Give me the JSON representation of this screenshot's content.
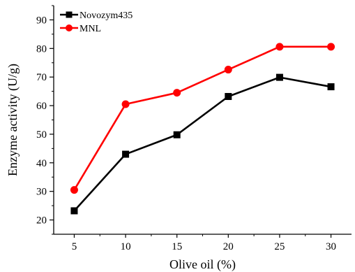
{
  "chart_data": {
    "type": "line",
    "title": "",
    "xlabel": "Olive oil (%)",
    "ylabel": "Enzyme activity (U/g)",
    "x": [
      5,
      10,
      15,
      20,
      25,
      30
    ],
    "x_ticks": [
      "5",
      "10",
      "15",
      "20",
      "25",
      "30"
    ],
    "y_ticks": [
      "20",
      "30",
      "40",
      "50",
      "60",
      "70",
      "80",
      "90"
    ],
    "xlim": [
      3,
      32
    ],
    "ylim": [
      15,
      95
    ],
    "grid": false,
    "legend_position": "top-left",
    "series": [
      {
        "name": "Novozym435",
        "color": "#000000",
        "marker": "square",
        "values": [
          23.2,
          43.0,
          49.8,
          63.2,
          69.9,
          66.6
        ]
      },
      {
        "name": "MNL",
        "color": "#ff0000",
        "marker": "circle",
        "values": [
          30.5,
          60.5,
          64.5,
          72.6,
          80.6,
          80.6
        ]
      }
    ]
  }
}
